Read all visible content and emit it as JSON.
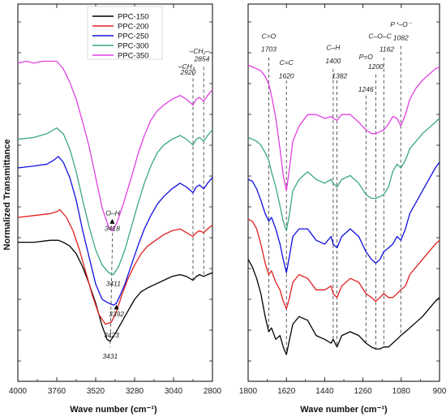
{
  "figure": {
    "ylabel": "Normalized Transmittance",
    "xlabel": "Wave number (cm⁻¹)"
  },
  "colors": {
    "PPC-150": "#000000",
    "PPC-200": "#e02020",
    "PPC-250": "#1010e0",
    "PPC-300": "#3aa87a",
    "PPC-350": "#e040e0"
  },
  "chart_data": [
    {
      "type": "line",
      "panel": "left",
      "xlabel": "Wave number (cm⁻¹)",
      "ylabel": "Normalized Transmittance",
      "xlim": [
        4000,
        2800
      ],
      "x_reversed": true,
      "y_ticklabels": false,
      "grid": false,
      "xticks": [
        4000,
        3760,
        3520,
        3280,
        3040,
        2800
      ],
      "legend": {
        "placement": "top-right",
        "entries": [
          "PPC-150",
          "PPC-200",
          "PPC-250",
          "PPC-300",
          "PPC-350"
        ]
      },
      "series": [
        {
          "name": "PPC-150",
          "x": [
            4000,
            3900,
            3800,
            3750,
            3720,
            3680,
            3640,
            3600,
            3560,
            3520,
            3480,
            3450,
            3431,
            3400,
            3360,
            3320,
            3280,
            3240,
            3200,
            3150,
            3100,
            3050,
            3000,
            2960,
            2920,
            2900,
            2880,
            2854,
            2830,
            2800
          ],
          "y": [
            0.68,
            0.68,
            0.69,
            0.69,
            0.68,
            0.66,
            0.62,
            0.55,
            0.46,
            0.36,
            0.24,
            0.17,
            0.16,
            0.2,
            0.26,
            0.32,
            0.38,
            0.42,
            0.44,
            0.46,
            0.48,
            0.5,
            0.51,
            0.5,
            0.48,
            0.5,
            0.51,
            0.5,
            0.51,
            0.52
          ]
        },
        {
          "name": "PPC-200",
          "x": [
            4000,
            3900,
            3800,
            3760,
            3740,
            3700,
            3660,
            3620,
            3580,
            3540,
            3500,
            3460,
            3423,
            3390,
            3360,
            3320,
            3280,
            3240,
            3200,
            3150,
            3100,
            3050,
            3000,
            2960,
            2920,
            2900,
            2880,
            2854,
            2830,
            2800
          ],
          "y": [
            0.81,
            0.82,
            0.83,
            0.84,
            0.85,
            0.81,
            0.74,
            0.64,
            0.52,
            0.4,
            0.3,
            0.25,
            0.26,
            0.32,
            0.4,
            0.49,
            0.56,
            0.62,
            0.66,
            0.69,
            0.72,
            0.74,
            0.75,
            0.73,
            0.71,
            0.73,
            0.74,
            0.73,
            0.75,
            0.77
          ]
        },
        {
          "name": "PPC-250",
          "x": [
            4000,
            3900,
            3820,
            3780,
            3750,
            3720,
            3680,
            3640,
            3600,
            3560,
            3520,
            3480,
            3440,
            3410,
            3392,
            3370,
            3340,
            3300,
            3260,
            3220,
            3180,
            3140,
            3100,
            3050,
            3000,
            2960,
            2920,
            2900,
            2880,
            2854,
            2830,
            2800
          ],
          "y": [
            1.07,
            1.08,
            1.09,
            1.11,
            1.13,
            1.1,
            1.02,
            0.9,
            0.74,
            0.6,
            0.46,
            0.38,
            0.36,
            0.35,
            0.36,
            0.4,
            0.46,
            0.56,
            0.66,
            0.75,
            0.82,
            0.88,
            0.92,
            0.96,
            0.99,
            0.97,
            0.94,
            0.97,
            0.98,
            0.96,
            0.99,
            1.02
          ]
        },
        {
          "name": "PPC-300",
          "x": [
            4000,
            3900,
            3820,
            3780,
            3760,
            3720,
            3680,
            3640,
            3600,
            3560,
            3520,
            3480,
            3440,
            3411,
            3380,
            3340,
            3300,
            3260,
            3220,
            3180,
            3140,
            3100,
            3050,
            3000,
            2960,
            2920,
            2900,
            2880,
            2854,
            2830,
            2800
          ],
          "y": [
            1.22,
            1.23,
            1.25,
            1.27,
            1.28,
            1.25,
            1.17,
            1.05,
            0.9,
            0.76,
            0.64,
            0.56,
            0.52,
            0.51,
            0.55,
            0.64,
            0.76,
            0.88,
            0.99,
            1.08,
            1.15,
            1.19,
            1.22,
            1.24,
            1.22,
            1.19,
            1.22,
            1.23,
            1.21,
            1.24,
            1.27
          ]
        },
        {
          "name": "PPC-350",
          "x": [
            4000,
            3950,
            3900,
            3850,
            3800,
            3760,
            3720,
            3680,
            3640,
            3600,
            3560,
            3520,
            3480,
            3440,
            3418,
            3390,
            3350,
            3300,
            3260,
            3220,
            3180,
            3140,
            3100,
            3050,
            3000,
            2960,
            2920,
            2900,
            2880,
            2854,
            2830,
            2800
          ],
          "y": [
            1.62,
            1.63,
            1.62,
            1.63,
            1.63,
            1.63,
            1.59,
            1.52,
            1.43,
            1.31,
            1.18,
            1.02,
            0.86,
            0.76,
            0.74,
            0.78,
            0.88,
            1.02,
            1.14,
            1.24,
            1.32,
            1.37,
            1.4,
            1.43,
            1.45,
            1.43,
            1.4,
            1.43,
            1.44,
            1.42,
            1.45,
            1.48
          ]
        }
      ],
      "annotations": [
        {
          "text": "O–H",
          "x": 3415,
          "y": 0.82
        },
        {
          "text": "3418",
          "x": 3418,
          "y": 0.74
        },
        {
          "text": "3411",
          "x": 3411,
          "y": 0.45
        },
        {
          "text": "3392",
          "x": 3392,
          "y": 0.29
        },
        {
          "text": "3423",
          "x": 3423,
          "y": 0.18
        },
        {
          "text": "3431",
          "x": 3431,
          "y": 0.07
        },
        {
          "text": "–CH₂–",
          "x": 2880,
          "y": 1.67
        },
        {
          "text": "–CH₃",
          "x": 2960,
          "y": 1.59
        },
        {
          "text": "2920",
          "x": 2950,
          "y": 1.56
        },
        {
          "text": "2854",
          "x": 2865,
          "y": 1.63
        }
      ]
    },
    {
      "type": "line",
      "panel": "right",
      "xlabel": "Wave number (cm⁻¹)",
      "xlim": [
        1800,
        900
      ],
      "x_reversed": true,
      "y_ticklabels": false,
      "grid": false,
      "xticks": [
        1800,
        1620,
        1440,
        1260,
        1080,
        900
      ],
      "series": [
        {
          "name": "PPC-150",
          "x": [
            1800,
            1780,
            1760,
            1740,
            1720,
            1703,
            1690,
            1670,
            1650,
            1635,
            1620,
            1605,
            1590,
            1560,
            1520,
            1480,
            1440,
            1410,
            1400,
            1382,
            1360,
            1320,
            1280,
            1246,
            1220,
            1200,
            1180,
            1162,
            1140,
            1120,
            1100,
            1082,
            1060,
            1040,
            1010,
            980,
            950,
            920,
            900
          ],
          "y": [
            0.66,
            0.62,
            0.56,
            0.48,
            0.36,
            0.28,
            0.3,
            0.24,
            0.26,
            0.2,
            0.16,
            0.24,
            0.32,
            0.36,
            0.34,
            0.26,
            0.24,
            0.22,
            0.24,
            0.2,
            0.26,
            0.28,
            0.26,
            0.22,
            0.2,
            0.19,
            0.19,
            0.2,
            0.2,
            0.22,
            0.24,
            0.26,
            0.28,
            0.3,
            0.33,
            0.36,
            0.4,
            0.44,
            0.46
          ]
        },
        {
          "name": "PPC-200",
          "x": [
            1800,
            1780,
            1760,
            1740,
            1720,
            1703,
            1690,
            1670,
            1650,
            1635,
            1620,
            1605,
            1590,
            1560,
            1520,
            1480,
            1440,
            1410,
            1400,
            1382,
            1360,
            1320,
            1280,
            1246,
            1220,
            1200,
            1180,
            1162,
            1140,
            1120,
            1100,
            1082,
            1060,
            1040,
            1010,
            980,
            950,
            920,
            900
          ],
          "y": [
            0.87,
            0.86,
            0.82,
            0.74,
            0.64,
            0.58,
            0.6,
            0.54,
            0.5,
            0.44,
            0.4,
            0.46,
            0.54,
            0.58,
            0.56,
            0.5,
            0.5,
            0.52,
            0.48,
            0.46,
            0.52,
            0.56,
            0.54,
            0.48,
            0.46,
            0.44,
            0.46,
            0.48,
            0.46,
            0.46,
            0.48,
            0.5,
            0.52,
            0.58,
            0.62,
            0.66,
            0.7,
            0.74,
            0.76
          ]
        },
        {
          "name": "PPC-250",
          "x": [
            1800,
            1780,
            1760,
            1740,
            1720,
            1703,
            1690,
            1670,
            1650,
            1635,
            1620,
            1605,
            1590,
            1560,
            1520,
            1480,
            1440,
            1410,
            1400,
            1382,
            1360,
            1320,
            1280,
            1246,
            1220,
            1200,
            1180,
            1162,
            1140,
            1120,
            1100,
            1082,
            1060,
            1040,
            1010,
            980,
            950,
            920,
            900
          ],
          "y": [
            1.08,
            1.07,
            1.03,
            0.97,
            0.9,
            0.86,
            0.88,
            0.82,
            0.74,
            0.66,
            0.59,
            0.68,
            0.78,
            0.82,
            0.82,
            0.76,
            0.74,
            0.78,
            0.74,
            0.72,
            0.78,
            0.82,
            0.78,
            0.7,
            0.66,
            0.64,
            0.66,
            0.7,
            0.72,
            0.74,
            0.78,
            0.76,
            0.82,
            0.9,
            0.96,
            1.02,
            1.08,
            1.14,
            1.17
          ]
        },
        {
          "name": "PPC-300",
          "x": [
            1800,
            1780,
            1760,
            1740,
            1720,
            1703,
            1690,
            1670,
            1650,
            1635,
            1620,
            1605,
            1590,
            1560,
            1520,
            1480,
            1440,
            1410,
            1400,
            1382,
            1360,
            1320,
            1280,
            1246,
            1220,
            1200,
            1180,
            1162,
            1140,
            1120,
            1100,
            1082,
            1060,
            1040,
            1010,
            980,
            950,
            920,
            900
          ],
          "y": [
            1.3,
            1.29,
            1.28,
            1.26,
            1.22,
            1.18,
            1.12,
            1.04,
            0.94,
            0.86,
            0.81,
            0.9,
            1.02,
            1.08,
            1.12,
            1.08,
            1.06,
            1.08,
            1.06,
            1.04,
            1.08,
            1.1,
            1.06,
            1.0,
            0.98,
            0.98,
            0.99,
            1.0,
            1.04,
            1.12,
            1.16,
            1.14,
            1.18,
            1.24,
            1.28,
            1.32,
            1.35,
            1.38,
            1.4
          ]
        },
        {
          "name": "PPC-350",
          "x": [
            1800,
            1780,
            1760,
            1740,
            1720,
            1703,
            1690,
            1670,
            1650,
            1635,
            1620,
            1605,
            1590,
            1560,
            1520,
            1480,
            1440,
            1410,
            1400,
            1382,
            1360,
            1320,
            1280,
            1246,
            1220,
            1200,
            1180,
            1162,
            1140,
            1120,
            1100,
            1082,
            1060,
            1040,
            1010,
            980,
            950,
            920,
            900
          ],
          "y": [
            1.68,
            1.67,
            1.66,
            1.65,
            1.62,
            1.58,
            1.52,
            1.4,
            1.24,
            1.1,
            1.02,
            1.14,
            1.28,
            1.36,
            1.42,
            1.42,
            1.4,
            1.41,
            1.4,
            1.39,
            1.42,
            1.42,
            1.38,
            1.34,
            1.32,
            1.32,
            1.33,
            1.34,
            1.37,
            1.41,
            1.4,
            1.36,
            1.42,
            1.5,
            1.56,
            1.6,
            1.63,
            1.66,
            1.67
          ]
        }
      ],
      "annotations": [
        {
          "text": "C=O",
          "x": 1703,
          "y": 1.82
        },
        {
          "text": "1703",
          "x": 1703,
          "y": 1.75
        },
        {
          "text": "C=C",
          "x": 1620,
          "y": 1.68
        },
        {
          "text": "1620",
          "x": 1620,
          "y": 1.61
        },
        {
          "text": "C–H",
          "x": 1400,
          "y": 1.76
        },
        {
          "text": "1400",
          "x": 1400,
          "y": 1.69
        },
        {
          "text": "1382",
          "x": 1370,
          "y": 1.61
        },
        {
          "text": "P=O",
          "x": 1246,
          "y": 1.71
        },
        {
          "text": "1246",
          "x": 1246,
          "y": 1.54
        },
        {
          "text": "C–O–C",
          "x": 1180,
          "y": 1.82
        },
        {
          "text": "1200",
          "x": 1200,
          "y": 1.66
        },
        {
          "text": "1162",
          "x": 1148,
          "y": 1.75
        },
        {
          "text": "P⁺–O⁻",
          "x": 1082,
          "y": 1.88
        },
        {
          "text": "1082",
          "x": 1082,
          "y": 1.81
        }
      ]
    }
  ]
}
